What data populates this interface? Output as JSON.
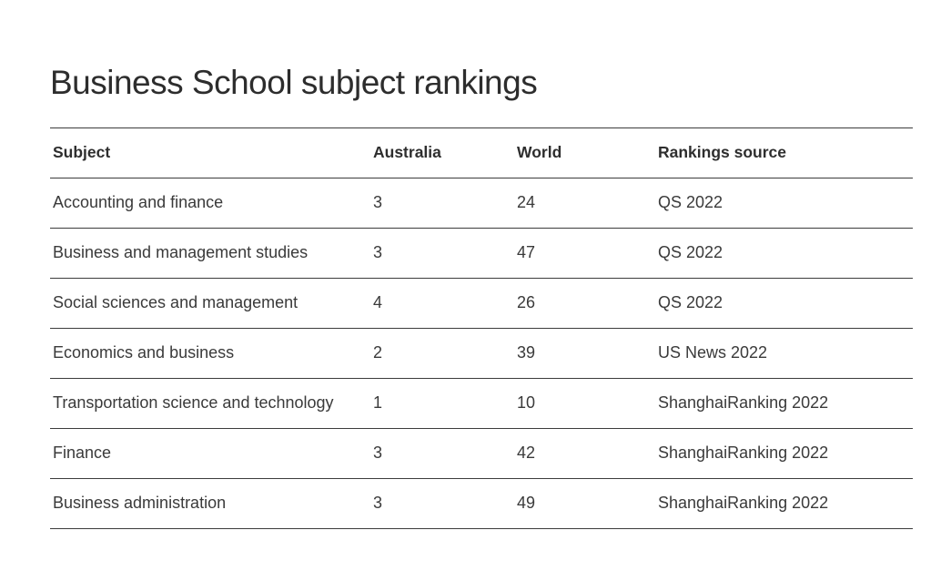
{
  "page": {
    "title": "Business School subject rankings"
  },
  "table": {
    "columns": [
      "Subject",
      "Australia",
      "World",
      "Rankings source"
    ],
    "fields": [
      "subject",
      "australia",
      "world",
      "source"
    ],
    "rows": [
      {
        "subject": "Accounting and finance",
        "australia": "3",
        "world": "24",
        "source": "QS 2022"
      },
      {
        "subject": "Business and management studies",
        "australia": "3",
        "world": "47",
        "source": "QS 2022"
      },
      {
        "subject": "Social sciences and management",
        "australia": "4",
        "world": "26",
        "source": "QS 2022"
      },
      {
        "subject": "Economics and business",
        "australia": "2",
        "world": "39",
        "source": "US News 2022"
      },
      {
        "subject": "Transportation science and technology",
        "australia": "1",
        "world": "10",
        "source": "ShanghaiRanking 2022"
      },
      {
        "subject": "Finance",
        "australia": "3",
        "world": "42",
        "source": "ShanghaiRanking 2022"
      },
      {
        "subject": "Business administration",
        "australia": "3",
        "world": "49",
        "source": "ShanghaiRanking 2022"
      }
    ]
  },
  "colors": {
    "background": "#ffffff",
    "title_text": "#2d2d2d",
    "header_text": "#2e2e2e",
    "body_text": "#3a3a3a",
    "border": "#3c3c3c"
  }
}
